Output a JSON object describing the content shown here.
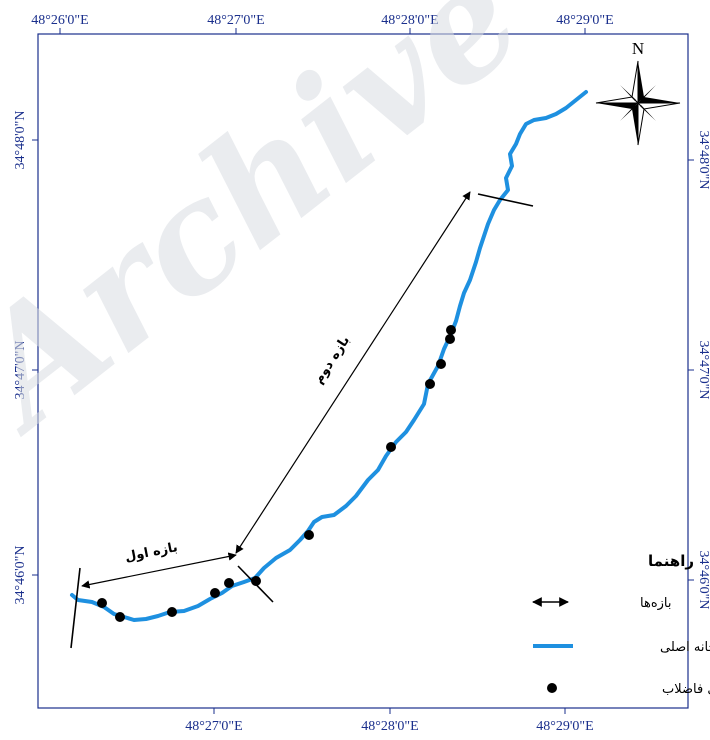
{
  "top_ticks": [
    "48°26'0\"E",
    "48°27'0\"E",
    "48°28'0\"E",
    "48°29'0\"E"
  ],
  "bottom_ticks": [
    "48°27'0\"E",
    "48°28'0\"E",
    "48°29'0\"E"
  ],
  "left_ticks": [
    "34°48'0\"N",
    "34°47'0\"N",
    "34°46'0\"N"
  ],
  "right_ticks": [
    "34°48'0\"N",
    "34°47'0\"N",
    "34°46'0\"N"
  ],
  "north_label": "N",
  "watermark": "Archive",
  "reach_labels": {
    "first": "بازه اول",
    "second": "بازه دوم"
  },
  "legend": {
    "title": "راهنما",
    "items": [
      {
        "label": "بازه‌ها",
        "symbol": "double-arrow"
      },
      {
        "label": "رودخانه اصلی",
        "symbol": "river-line"
      },
      {
        "label": "ورودی فاضلاب",
        "symbol": "dot"
      }
    ]
  },
  "colors": {
    "river": "#1e90e0",
    "frame": "#1a2f8c",
    "coord_text": "#1a2f8c",
    "outlet": "#000000"
  }
}
